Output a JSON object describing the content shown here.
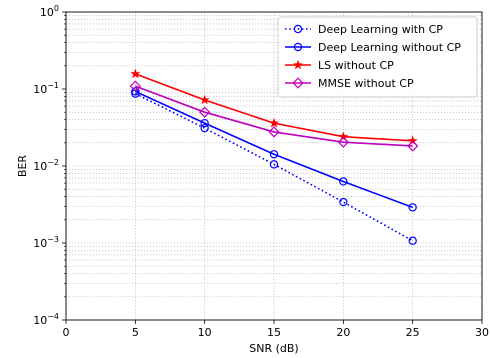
{
  "chart_data": {
    "type": "line",
    "xlabel": "SNR (dB)",
    "ylabel": "BER",
    "xlim": [
      0,
      30
    ],
    "ylim": [
      0.0001,
      1
    ],
    "yscale": "log",
    "grid": true,
    "legend_position": "top-right",
    "x_ticks": [
      0,
      5,
      10,
      15,
      20,
      25,
      30
    ],
    "x_tick_labels": [
      "0",
      "5",
      "10",
      "15",
      "20",
      "25",
      "30"
    ],
    "y_ticks": [
      0.0001,
      0.001,
      0.01,
      0.1,
      1
    ],
    "y_tick_labels": [
      {
        "base": "10",
        "exp": "−4"
      },
      {
        "base": "10",
        "exp": "−3"
      },
      {
        "base": "10",
        "exp": "−2"
      },
      {
        "base": "10",
        "exp": "−1"
      },
      {
        "base": "10",
        "exp": "0"
      }
    ],
    "series": [
      {
        "name": "Deep Learning with CP",
        "color": "#0000ff",
        "line_style": "dotted",
        "marker": "circle",
        "x": [
          5,
          10,
          15,
          20,
          25
        ],
        "y": [
          0.087,
          0.031,
          0.0105,
          0.0034,
          0.00107
        ]
      },
      {
        "name": "Deep Learning without CP",
        "color": "#0000ff",
        "line_style": "solid",
        "marker": "circle",
        "x": [
          5,
          10,
          15,
          20,
          25
        ],
        "y": [
          0.093,
          0.036,
          0.0142,
          0.0063,
          0.0029
        ]
      },
      {
        "name": "LS without CP",
        "color": "#ff0000",
        "line_style": "solid",
        "marker": "star",
        "x": [
          5,
          10,
          15,
          20,
          25
        ],
        "y": [
          0.157,
          0.072,
          0.036,
          0.024,
          0.0212
        ]
      },
      {
        "name": "MMSE without CP",
        "color": "#bf00bf",
        "line_style": "solid",
        "marker": "diamond",
        "x": [
          5,
          10,
          15,
          20,
          25
        ],
        "y": [
          0.109,
          0.05,
          0.0277,
          0.0204,
          0.0182
        ]
      }
    ]
  }
}
